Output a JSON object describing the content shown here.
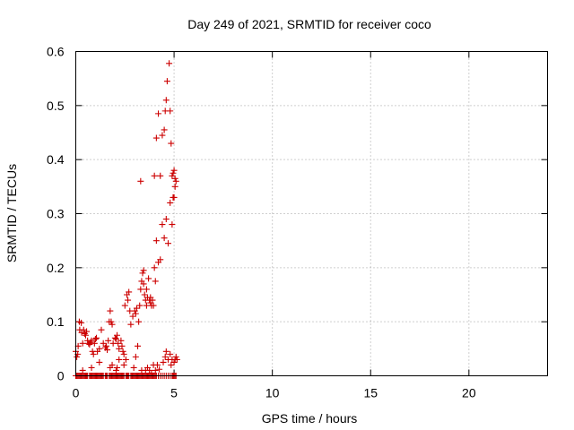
{
  "chart_data": {
    "type": "scatter",
    "title": "Day 249 of 2021, SRMTID for receiver coco",
    "xlabel": "GPS time / hours",
    "ylabel": "SRMTID / TECUs",
    "xlim": [
      0,
      24
    ],
    "ylim": [
      0,
      0.6
    ],
    "xticks": [
      0,
      5,
      10,
      15,
      20
    ],
    "xtick_labels": [
      "0",
      "5",
      "10",
      "15",
      "20"
    ],
    "yticks": [
      0,
      0.1,
      0.2,
      0.3,
      0.4,
      0.5,
      0.6
    ],
    "ytick_labels": [
      "0",
      "0.1",
      "0.2",
      "0.3",
      "0.4",
      "0.5",
      "0.6"
    ],
    "grid": true,
    "series": [
      {
        "name": "SRMTID",
        "color": "#cc0000",
        "marker": "plus",
        "x": [
          0.0,
          0.05,
          0.1,
          0.15,
          0.2,
          0.25,
          0.3,
          0.35,
          0.4,
          0.45,
          0.5,
          0.55,
          0.6,
          0.7,
          0.75,
          0.8,
          0.85,
          0.9,
          0.95,
          1.0,
          1.05,
          1.1,
          1.15,
          1.2,
          1.25,
          1.3,
          1.35,
          1.4,
          1.5,
          1.55,
          1.6,
          1.7,
          1.75,
          1.8,
          1.85,
          1.9,
          1.95,
          2.0,
          2.05,
          2.1,
          2.15,
          2.2,
          2.25,
          2.3,
          2.35,
          2.4,
          2.45,
          2.55,
          2.6,
          2.65,
          2.7,
          2.8,
          2.85,
          2.9,
          2.95,
          3.0,
          3.05,
          3.1,
          3.15,
          3.2,
          3.25,
          3.3,
          3.35,
          3.4,
          3.45,
          3.5,
          3.55,
          3.6,
          3.65,
          3.7,
          3.75,
          3.8,
          3.85,
          3.9,
          3.95,
          4.0,
          4.05,
          4.1,
          4.2,
          4.3,
          4.4,
          4.5,
          4.6,
          4.7,
          4.8,
          4.9,
          4.95,
          5.0,
          5.05,
          5.1,
          0.0,
          0.05,
          0.1,
          0.12,
          0.18,
          0.2,
          0.28,
          0.3,
          0.35,
          0.4,
          0.45,
          0.5,
          0.55,
          0.6,
          0.65,
          0.7,
          0.75,
          0.8,
          0.85,
          0.9,
          0.95,
          1.0,
          1.05,
          1.1,
          1.2,
          1.3,
          1.4,
          1.5,
          1.55,
          1.6,
          1.65,
          1.7,
          1.75,
          1.8,
          1.85,
          1.9,
          2.0,
          2.05,
          2.1,
          2.15,
          2.2,
          2.3,
          2.35,
          2.4,
          2.45,
          2.5,
          2.6,
          2.65,
          2.7,
          2.75,
          2.8,
          2.9,
          3.0,
          3.05,
          3.1,
          3.2,
          3.25,
          3.3,
          3.35,
          3.4,
          3.45,
          3.5,
          3.55,
          3.6,
          3.65,
          3.7,
          3.75,
          3.8,
          3.85,
          3.9,
          3.95,
          4.0,
          4.05,
          4.1,
          4.2,
          4.3,
          4.4,
          4.5,
          4.6,
          4.7,
          4.8,
          4.9,
          4.95,
          5.0,
          5.05,
          5.1,
          0.35,
          0.8,
          1.2,
          1.75,
          1.85,
          2.05,
          2.1,
          2.2,
          2.45,
          2.55,
          2.95,
          3.05,
          3.15,
          3.35,
          3.55,
          3.65,
          3.75,
          3.85,
          3.95,
          4.05,
          4.15,
          4.25,
          4.45,
          4.55,
          4.6,
          4.7,
          4.8,
          4.85,
          4.9,
          5.0,
          5.05,
          5.1,
          5.15,
          3.3,
          3.45,
          3.6,
          3.8,
          4.0,
          4.1,
          4.2,
          4.3,
          4.4,
          4.5,
          4.55,
          4.6,
          4.65,
          4.75,
          4.8,
          4.85,
          4.9,
          4.95,
          5.0,
          5.05
        ],
        "y": [
          0.0,
          0.0,
          0.0,
          0.0,
          0.0,
          0.0,
          0.0,
          0.0,
          0.0,
          0.0,
          0.0,
          0.0,
          0.0,
          0.0,
          0.0,
          0.0,
          0.0,
          0.0,
          0.0,
          0.0,
          0.0,
          0.0,
          0.0,
          0.0,
          0.0,
          0.0,
          0.0,
          0.0,
          0.0,
          0.0,
          0.0,
          0.0,
          0.0,
          0.0,
          0.0,
          0.0,
          0.0,
          0.0,
          0.0,
          0.0,
          0.0,
          0.0,
          0.0,
          0.0,
          0.0,
          0.0,
          0.0,
          0.0,
          0.0,
          0.0,
          0.0,
          0.0,
          0.0,
          0.0,
          0.0,
          0.0,
          0.0,
          0.0,
          0.0,
          0.0,
          0.0,
          0.0,
          0.0,
          0.0,
          0.0,
          0.0,
          0.0,
          0.0,
          0.0,
          0.0,
          0.0,
          0.0,
          0.0,
          0.0,
          0.0,
          0.0,
          0.0,
          0.0,
          0.0,
          0.0,
          0.0,
          0.0,
          0.0,
          0.0,
          0.0,
          0.0,
          0.0,
          0.0,
          0.0,
          0.0,
          0.045,
          0.035,
          0.04,
          0.055,
          0.1,
          0.085,
          0.098,
          0.08,
          0.06,
          0.085,
          0.078,
          0.075,
          0.082,
          0.065,
          0.06,
          0.058,
          0.062,
          0.065,
          0.045,
          0.04,
          0.06,
          0.068,
          0.07,
          0.045,
          0.05,
          0.085,
          0.06,
          0.052,
          0.055,
          0.048,
          0.065,
          0.1,
          0.12,
          0.1,
          0.095,
          0.06,
          0.07,
          0.068,
          0.075,
          0.06,
          0.05,
          0.065,
          0.055,
          0.045,
          0.04,
          0.13,
          0.15,
          0.14,
          0.155,
          0.12,
          0.095,
          0.11,
          0.12,
          0.115,
          0.125,
          0.1,
          0.13,
          0.16,
          0.175,
          0.19,
          0.17,
          0.15,
          0.14,
          0.16,
          0.145,
          0.18,
          0.14,
          0.135,
          0.13,
          0.14,
          0.13,
          0.2,
          0.175,
          0.25,
          0.21,
          0.215,
          0.28,
          0.255,
          0.29,
          0.245,
          0.32,
          0.28,
          0.33,
          0.33,
          0.35,
          0.36,
          0.01,
          0.015,
          0.025,
          0.015,
          0.02,
          0.01,
          0.015,
          0.03,
          0.02,
          0.03,
          0.015,
          0.035,
          0.055,
          0.01,
          0.01,
          0.015,
          0.01,
          0.005,
          0.02,
          0.01,
          0.02,
          0.012,
          0.025,
          0.035,
          0.045,
          0.03,
          0.04,
          0.02,
          0.03,
          0.025,
          0.03,
          0.035,
          0.03,
          0.36,
          0.195,
          0.13,
          0.145,
          0.37,
          0.44,
          0.485,
          0.37,
          0.445,
          0.455,
          0.49,
          0.51,
          0.545,
          0.578,
          0.49,
          0.43,
          0.37,
          0.375,
          0.38,
          0.365
        ]
      }
    ]
  }
}
